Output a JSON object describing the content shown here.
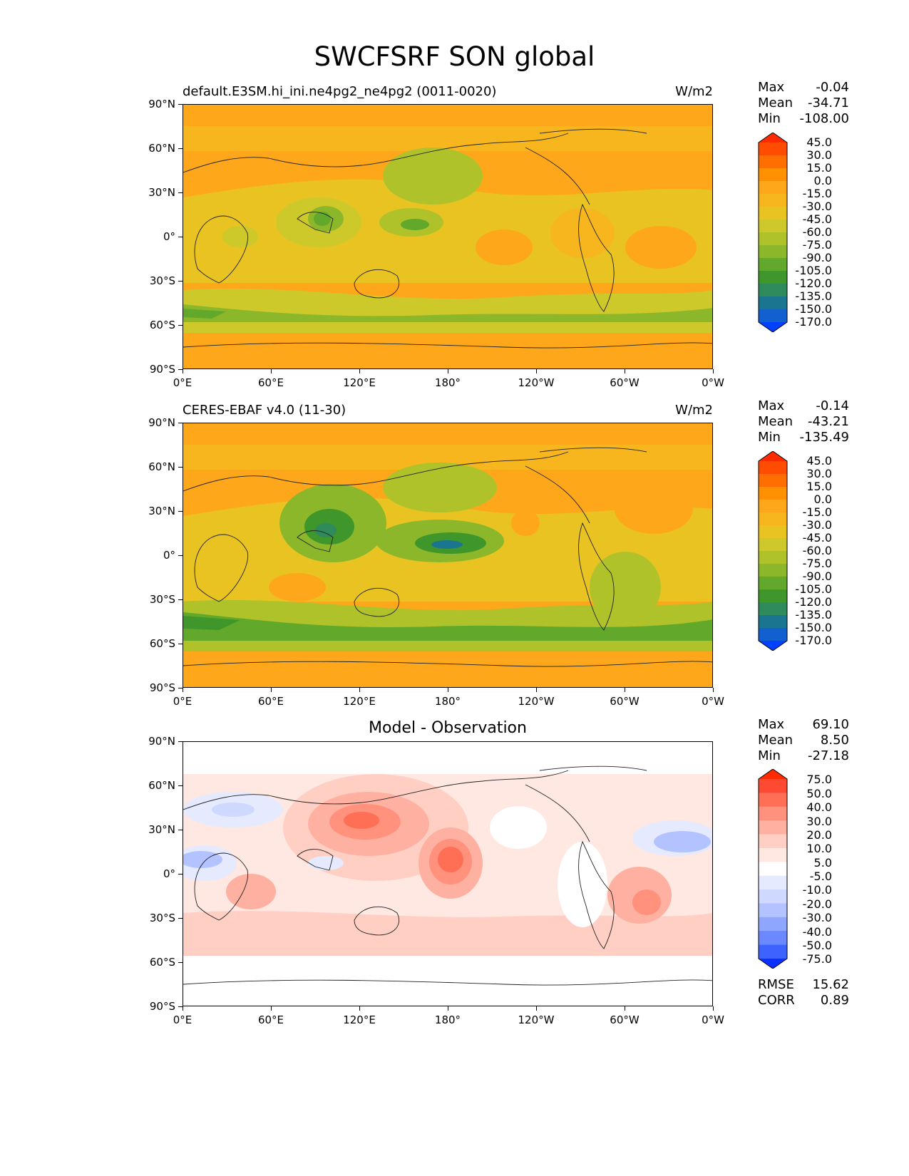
{
  "title": "SWCFSRF SON global",
  "lat_ticks": [
    "90°N",
    "60°N",
    "30°N",
    "0°",
    "30°S",
    "60°S",
    "90°S"
  ],
  "lon_ticks": [
    "0°E",
    "60°E",
    "120°E",
    "180°",
    "120°W",
    "60°W",
    "0°W"
  ],
  "panels": [
    {
      "left_label": "default.E3SM.hi_ini.ne4pg2_ne4pg2 (0011-0020)",
      "right_label": "W/m2",
      "center_label": "",
      "stats": {
        "max_label": "Max",
        "max": "-0.04",
        "mean_label": "Mean",
        "mean": "-34.71",
        "min_label": "Min",
        "min": "-108.00"
      },
      "colorbar": {
        "levels": [
          "45.0",
          "30.0",
          "15.0",
          "0.0",
          "-15.0",
          "-30.0",
          "-45.0",
          "-60.0",
          "-75.0",
          "-90.0",
          "-105.0",
          "-120.0",
          "-135.0",
          "-150.0",
          "-170.0"
        ],
        "colors": [
          "#ff2a00",
          "#ff4c00",
          "#ff6e00",
          "#ff9000",
          "#ffa71a",
          "#f7b61d",
          "#e8c322",
          "#cec92a",
          "#b0c22a",
          "#8cb72a",
          "#62a82a",
          "#3f962a",
          "#2f8a5c",
          "#1a7690",
          "#125fd0",
          "#0040ff"
        ]
      },
      "metrics": null
    },
    {
      "left_label": "CERES-EBAF v4.0 (11-30)",
      "right_label": "W/m2",
      "center_label": "",
      "stats": {
        "max_label": "Max",
        "max": "-0.14",
        "mean_label": "Mean",
        "mean": "-43.21",
        "min_label": "Min",
        "min": "-135.49"
      },
      "colorbar": {
        "levels": [
          "45.0",
          "30.0",
          "15.0",
          "0.0",
          "-15.0",
          "-30.0",
          "-45.0",
          "-60.0",
          "-75.0",
          "-90.0",
          "-105.0",
          "-120.0",
          "-135.0",
          "-150.0",
          "-170.0"
        ],
        "colors": [
          "#ff2a00",
          "#ff4c00",
          "#ff6e00",
          "#ff9000",
          "#ffa71a",
          "#f7b61d",
          "#e8c322",
          "#cec92a",
          "#b0c22a",
          "#8cb72a",
          "#62a82a",
          "#3f962a",
          "#2f8a5c",
          "#1a7690",
          "#125fd0",
          "#0040ff"
        ]
      },
      "metrics": null
    },
    {
      "left_label": "",
      "right_label": "",
      "center_label": "Model - Observation",
      "stats": {
        "max_label": "Max",
        "max": "69.10",
        "mean_label": "Mean",
        "mean": "8.50",
        "min_label": "Min",
        "min": "-27.18"
      },
      "colorbar": {
        "levels": [
          "75.0",
          "50.0",
          "40.0",
          "30.0",
          "20.0",
          "10.0",
          "5.0",
          "-5.0",
          "-10.0",
          "-20.0",
          "-30.0",
          "-40.0",
          "-50.0",
          "-75.0"
        ],
        "colors": [
          "#ff2a00",
          "#ff4a33",
          "#ff6f55",
          "#ff917d",
          "#ffb1a1",
          "#ffcfc4",
          "#ffe7e2",
          "#ffffff",
          "#e5eafe",
          "#cfd8ff",
          "#b3c3ff",
          "#8fa6ff",
          "#6b88ff",
          "#3d63ff",
          "#0a30ff"
        ]
      },
      "metrics": {
        "rmse_label": "RMSE",
        "rmse": "15.62",
        "corr_label": "CORR",
        "corr": "0.89"
      }
    }
  ],
  "chart_data": [
    {
      "type": "heatmap",
      "title": "default.E3SM.hi_ini.ne4pg2_ne4pg2 (0011-0020)",
      "units": "W/m2",
      "max": -0.04,
      "mean": -34.71,
      "min": -108.0
    },
    {
      "type": "heatmap",
      "title": "CERES-EBAF v4.0 (11-30)",
      "units": "W/m2",
      "max": -0.14,
      "mean": -43.21,
      "min": -135.49
    },
    {
      "type": "heatmap",
      "title": "Model - Observation",
      "max": 69.1,
      "mean": 8.5,
      "min": -27.18,
      "rmse": 15.62,
      "corr": 0.89
    }
  ]
}
